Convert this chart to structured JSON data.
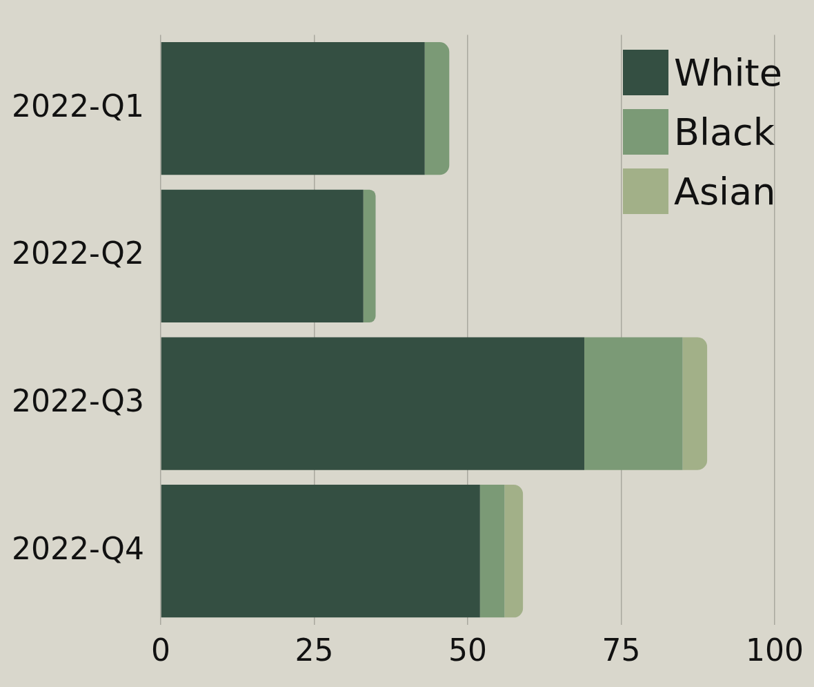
{
  "chart_data": {
    "type": "bar",
    "orientation": "horizontal",
    "stacked": true,
    "categories": [
      "2022-Q1",
      "2022-Q2",
      "2022-Q3",
      "2022-Q4"
    ],
    "series": [
      {
        "name": "White",
        "color": "#344f42",
        "values": [
          43,
          33,
          69,
          52
        ]
      },
      {
        "name": "Black",
        "color": "#7b9a76",
        "values": [
          4,
          2,
          16,
          4
        ]
      },
      {
        "name": "Asian",
        "color": "#a2b088",
        "values": [
          0,
          0,
          4,
          3
        ]
      }
    ],
    "xlim": [
      0,
      100
    ],
    "xticks": [
      0,
      25,
      50,
      75,
      100
    ],
    "grid": "x",
    "legend": "top right"
  }
}
